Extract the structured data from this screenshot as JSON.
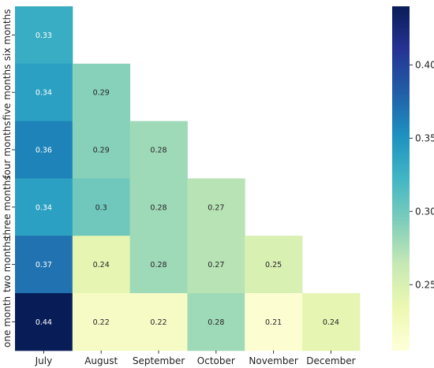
{
  "chart_data": {
    "type": "heatmap",
    "title": "",
    "xlabel": "",
    "ylabel": "",
    "x_categories": [
      "July",
      "August",
      "September",
      "October",
      "November",
      "December"
    ],
    "y_categories": [
      "six months",
      "five months",
      "four months",
      "three months",
      "two months",
      "one month"
    ],
    "values": [
      [
        0.33,
        null,
        null,
        null,
        null,
        null
      ],
      [
        0.34,
        0.29,
        null,
        null,
        null,
        null
      ],
      [
        0.36,
        0.29,
        0.28,
        null,
        null,
        null
      ],
      [
        0.34,
        0.3,
        0.28,
        0.27,
        null,
        null
      ],
      [
        0.37,
        0.24,
        0.28,
        0.27,
        0.25,
        null
      ],
      [
        0.44,
        0.22,
        0.22,
        0.28,
        0.21,
        0.24
      ]
    ],
    "value_labels": [
      [
        "0.33",
        "",
        "",
        "",
        "",
        ""
      ],
      [
        "0.34",
        "0.29",
        "",
        "",
        "",
        ""
      ],
      [
        "0.36",
        "0.29",
        "0.28",
        "",
        "",
        ""
      ],
      [
        "0.34",
        "0.3",
        "0.28",
        "0.27",
        "",
        ""
      ],
      [
        "0.37",
        "0.24",
        "0.28",
        "0.27",
        "0.25",
        ""
      ],
      [
        "0.44",
        "0.22",
        "0.22",
        "0.28",
        "0.21",
        "0.24"
      ]
    ],
    "mask": "upper-triangle",
    "colormap": "YlGnBu",
    "colorbar": {
      "range": [
        0.205,
        0.44
      ],
      "ticks": [
        0.25,
        0.3,
        0.35,
        0.4
      ],
      "tick_labels": [
        "0.25",
        "0.30",
        "0.35",
        "0.40"
      ],
      "placement": "right"
    },
    "grid": false,
    "legend": "none"
  }
}
